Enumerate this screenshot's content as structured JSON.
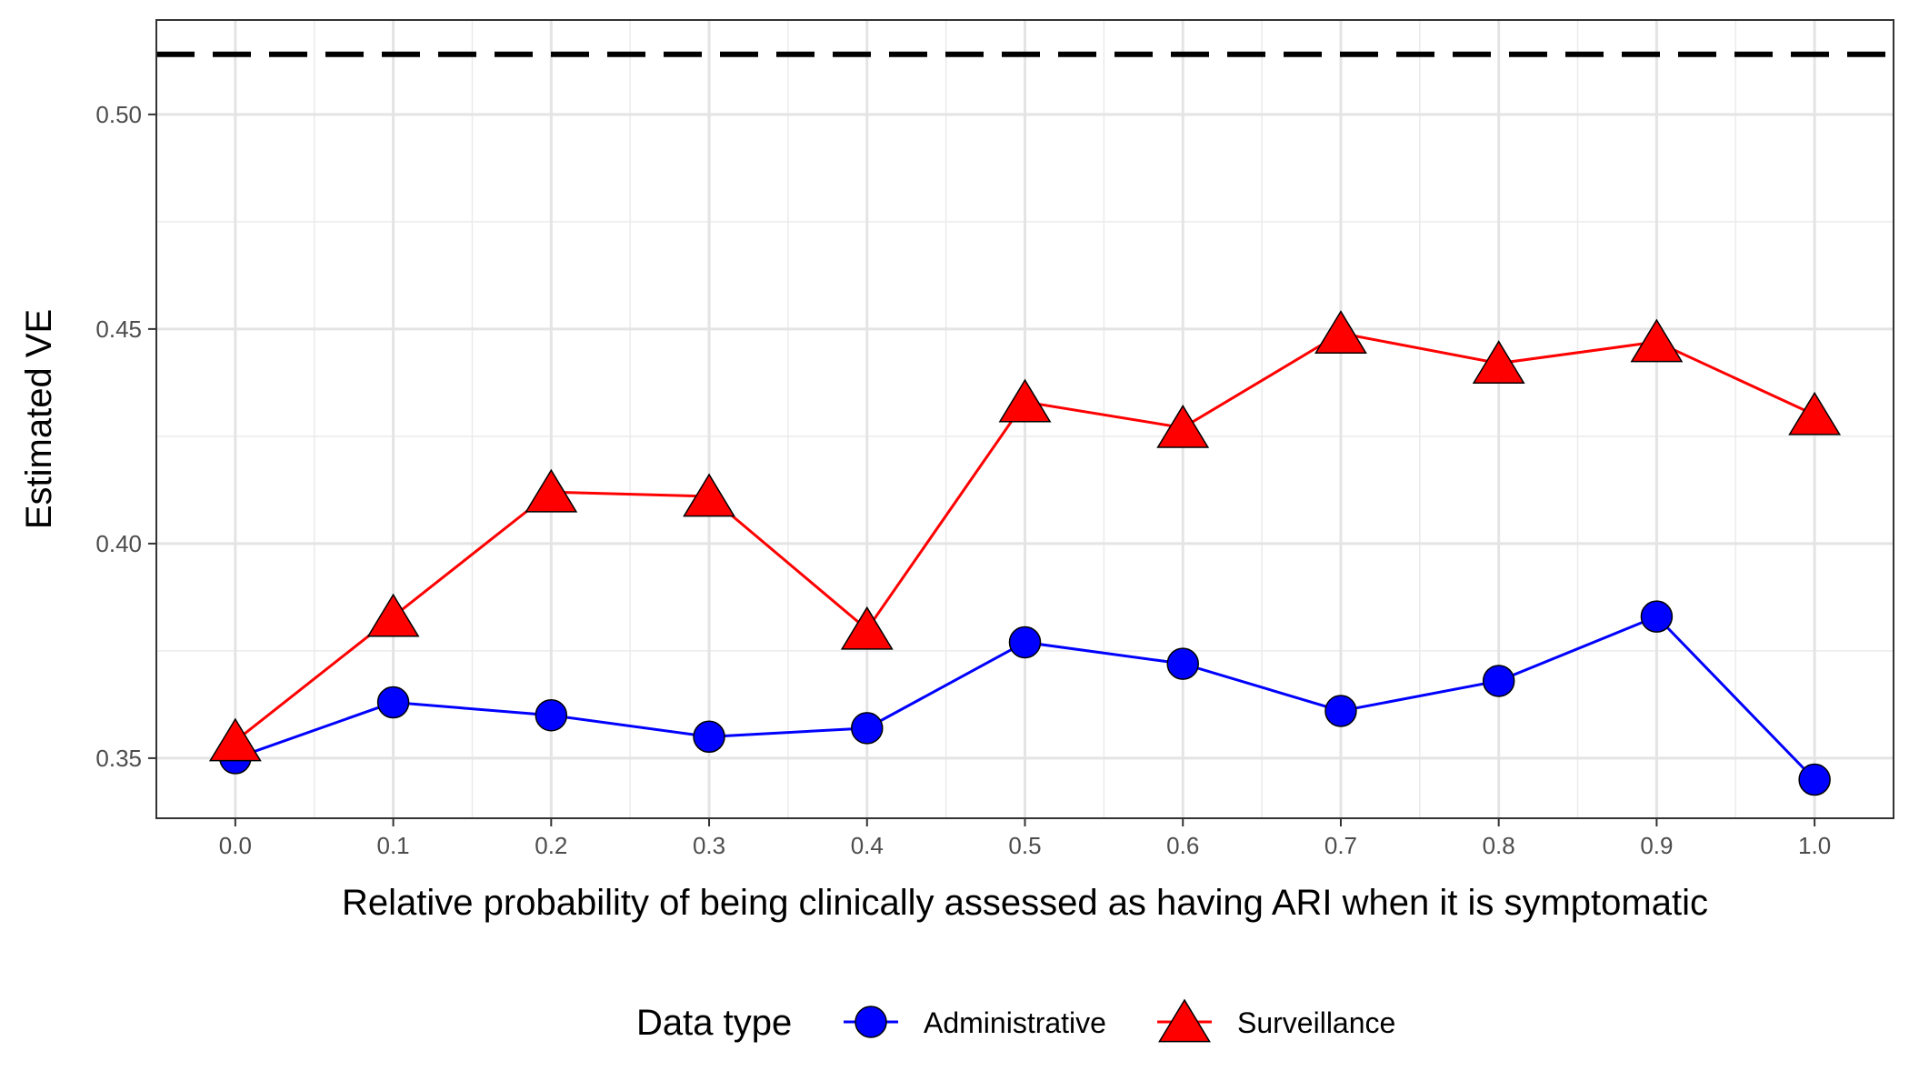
{
  "chart_data": {
    "type": "line",
    "title": "",
    "xlabel": "Relative probability of being clinically assessed as having ARI when it is symptomatic",
    "ylabel": "Estimated VE",
    "x": [
      0.0,
      0.1,
      0.2,
      0.3,
      0.4,
      0.5,
      0.6,
      0.7,
      0.8,
      0.9,
      1.0
    ],
    "x_tick_labels": [
      "0.0",
      "0.1",
      "0.2",
      "0.3",
      "0.4",
      "0.5",
      "0.6",
      "0.7",
      "0.8",
      "0.9",
      "1.0"
    ],
    "xlim": [
      -0.05,
      1.05
    ],
    "ylim": [
      0.336,
      0.522
    ],
    "y_ticks": [
      0.35,
      0.4,
      0.45,
      0.5
    ],
    "y_tick_labels": [
      "0.35",
      "0.40",
      "0.45",
      "0.50"
    ],
    "grid": true,
    "reference_line": {
      "y": 0.514,
      "style": "dashed",
      "color": "#000000"
    },
    "legend": {
      "title": "Data type",
      "position": "bottom"
    },
    "series": [
      {
        "name": "Administrative",
        "marker": "circle",
        "color": "#0000ff",
        "values": [
          0.35,
          0.363,
          0.36,
          0.355,
          0.357,
          0.377,
          0.372,
          0.361,
          0.368,
          0.383,
          0.345
        ]
      },
      {
        "name": "Surveillance",
        "marker": "triangle",
        "color": "#ff0000",
        "values": [
          0.354,
          0.383,
          0.412,
          0.411,
          0.38,
          0.433,
          0.427,
          0.449,
          0.442,
          0.447,
          0.43
        ]
      }
    ]
  }
}
